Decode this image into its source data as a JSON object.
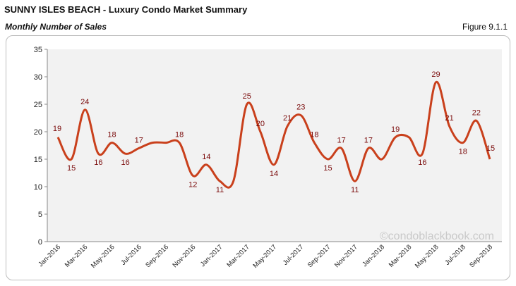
{
  "header": {
    "title": "SUNNY ISLES BEACH - Luxury Condo Market Summary",
    "subtitle": "Monthly Number of Sales",
    "figure": "Figure 9.1.1"
  },
  "watermark": "©condoblackbook.com",
  "colors": {
    "line": "#c9401c",
    "plot_bg": "#f2f2f2",
    "data_label": "#7a0a0a"
  },
  "chart_data": {
    "type": "line",
    "title": "Monthly Number of Sales",
    "ylim": [
      0,
      35
    ],
    "yticks": [
      0,
      5,
      10,
      15,
      20,
      25,
      30,
      35
    ],
    "x": [
      "Jan-2016",
      "Feb-2016",
      "Mar-2016",
      "Apr-2016",
      "May-2016",
      "Jun-2016",
      "Jul-2016",
      "Aug-2016",
      "Sep-2016",
      "Oct-2016",
      "Nov-2016",
      "Dec-2016",
      "Jan-2017",
      "Feb-2017",
      "Mar-2017",
      "Apr-2017",
      "May-2017",
      "Jun-2017",
      "Jul-2017",
      "Aug-2017",
      "Sep-2017",
      "Oct-2017",
      "Nov-2017",
      "Dec-2017",
      "Jan-2018",
      "Feb-2018",
      "Mar-2018",
      "Apr-2018",
      "May-2018",
      "Jun-2018",
      "Jul-2018",
      "Aug-2018",
      "Sep-2018"
    ],
    "xtick_labels": [
      "Jan-2016",
      "Mar-2016",
      "May-2016",
      "Jul-2016",
      "Sep-2016",
      "Nov-2016",
      "Jan-2017",
      "Mar-2017",
      "May-2017",
      "Jul-2017",
      "Sep-2017",
      "Nov-2017",
      "Jan-2018",
      "Mar-2018",
      "May-2018",
      "Jul-2018",
      "Sep-2018"
    ],
    "xtick_indices": [
      0,
      2,
      4,
      6,
      8,
      10,
      12,
      14,
      16,
      18,
      20,
      22,
      24,
      26,
      28,
      30,
      32
    ],
    "series": [
      {
        "values": [
          19,
          15,
          24,
          16,
          18,
          16,
          17,
          18,
          18,
          18,
          12,
          14,
          11,
          11,
          25,
          20,
          14,
          21,
          23,
          18,
          15,
          17,
          11,
          17,
          15,
          19,
          19,
          16,
          29,
          21,
          18,
          22,
          15
        ],
        "labeled_indices": [
          0,
          1,
          2,
          3,
          4,
          5,
          6,
          9,
          10,
          11,
          12,
          14,
          15,
          16,
          17,
          18,
          19,
          20,
          21,
          22,
          23,
          25,
          27,
          28,
          29,
          30,
          31,
          32
        ]
      }
    ],
    "grid": false,
    "legend": "none"
  }
}
